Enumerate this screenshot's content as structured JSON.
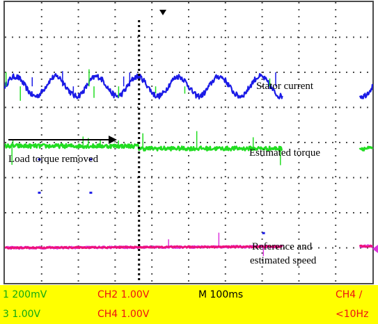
{
  "colors": {
    "background": "#ffffff",
    "grid": "#4a4a4a",
    "ch1": "#1a1ae6",
    "ch2": "#22dd22",
    "ch3": "#ee1177",
    "ch4": "#dd33dd",
    "readout_bg": "#ffff00",
    "readout_red": "#ee1111",
    "readout_green": "#11aa11",
    "readout_black": "#000000"
  },
  "chart_data": {
    "type": "line",
    "grid": true,
    "x_divisions": 10,
    "y_divisions": 8,
    "time_per_div_ms": 100,
    "trigger_marker": "down-arrow-top",
    "series": [
      {
        "name": "Stator current",
        "channel": 1,
        "color": "ch1",
        "offset_div": 5.6,
        "kind": "sine",
        "amplitude_div": 0.28,
        "cycles_per_div": 0.9,
        "noise_div": 0.08,
        "spikes": 14
      },
      {
        "name": "Estimated torque",
        "channel": 2,
        "color": "ch2",
        "offset_div": 3.85,
        "kind": "step",
        "step_at_div": 3.65,
        "before_div": 0.05,
        "after_div": -0.02,
        "noise_div": 0.06,
        "spikes": 10
      },
      {
        "name": "Reference speed",
        "channel": 4,
        "color": "ch4",
        "offset_div": 1.0,
        "kind": "ramp",
        "start_div": 0.0,
        "end_div": 0.05,
        "noise_div": 0.03,
        "spikes": 3
      },
      {
        "name": "Estimated speed",
        "channel": 3,
        "color": "ch3",
        "offset_div": 1.0,
        "kind": "ramp",
        "start_div": 0.0,
        "end_div": 0.05,
        "noise_div": 0.02,
        "spikes": 0
      }
    ],
    "event_line_div": 3.65
  },
  "annotations": {
    "stator_current": "Stator current",
    "estimated_torque": "Estimated torque",
    "load_torque_removed": "Load torque removed",
    "speed_line1": "Reference and",
    "speed_line2": "estimated speed"
  },
  "readout": {
    "row1": {
      "ch1": "1  200mV",
      "ch2": "CH2  1.00V",
      "timebase": "M 100ms",
      "trigger": "CH4  ∕"
    },
    "row2": {
      "ch3": "3  1.00V",
      "ch4": "CH4  1.00V",
      "trigger_freq": "<10Hz"
    }
  }
}
